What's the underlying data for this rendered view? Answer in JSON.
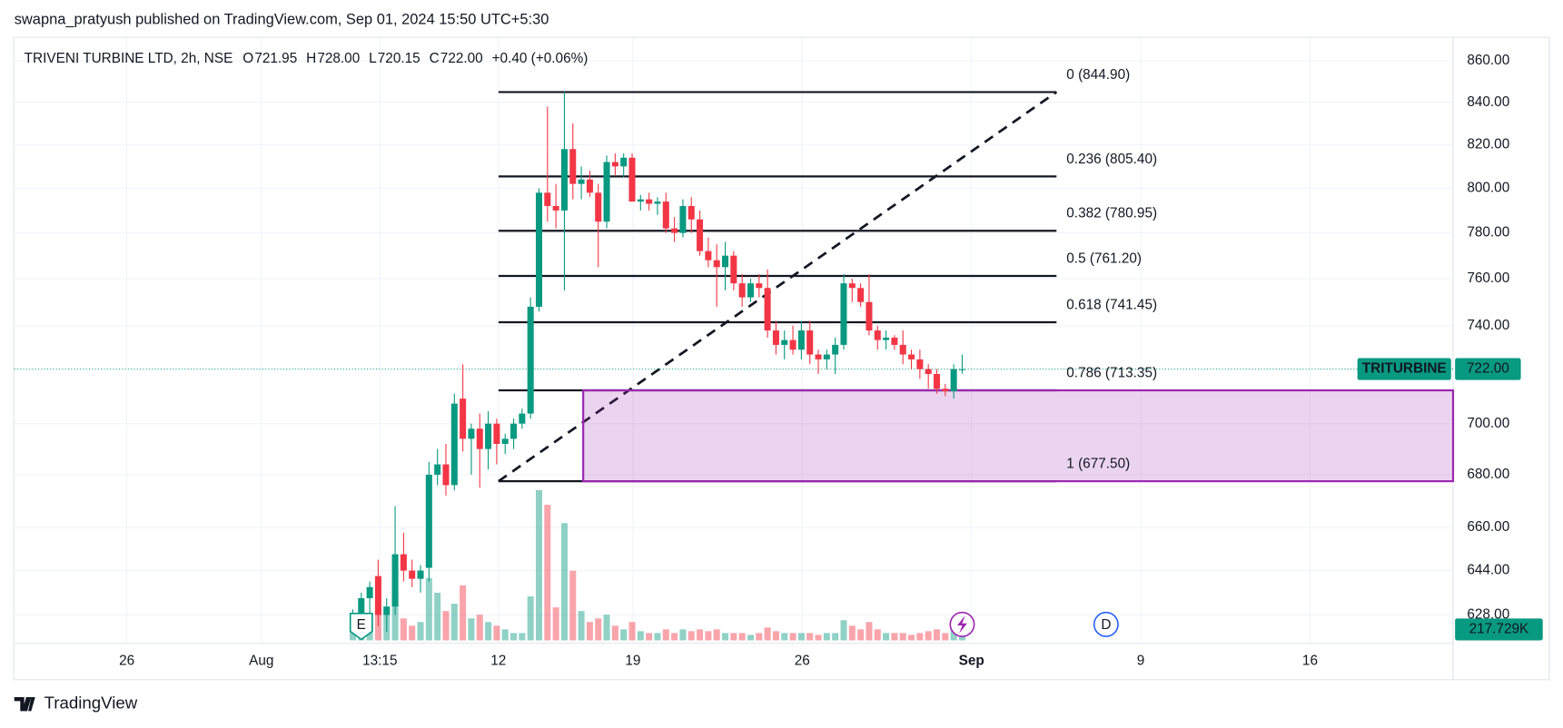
{
  "header": "swapna_pratyush published on TradingView.com, Sep 01, 2024 15:50 UTC+5:30",
  "footer": "TradingView",
  "chart_data": {
    "type": "candlestick",
    "title": "TRIVENI TURBINE LTD, 2h, NSE",
    "ohlc_legend": [
      {
        "key": "O",
        "value": "721.95"
      },
      {
        "key": "H",
        "value": "728.00"
      },
      {
        "key": "L",
        "value": "720.15"
      },
      {
        "key": "C",
        "value": "722.00"
      }
    ],
    "change": "+0.40 (+0.06%)",
    "colors": {
      "up": "#089981",
      "down": "#f23645"
    },
    "log_scale": true,
    "grid": true,
    "ylim": [
      619,
      871.3
    ],
    "yticks": [
      {
        "value": 628,
        "label": "628.00"
      },
      {
        "value": 644,
        "label": "644.00"
      },
      {
        "value": 660,
        "label": "660.00"
      },
      {
        "value": 680,
        "label": "680.00"
      },
      {
        "value": 700,
        "label": "700.00"
      },
      {
        "value": 740,
        "label": "740.00"
      },
      {
        "value": 760,
        "label": "760.00"
      },
      {
        "value": 780,
        "label": "780.00"
      },
      {
        "value": 800,
        "label": "800.00"
      },
      {
        "value": 820,
        "label": "820.00"
      },
      {
        "value": 840,
        "label": "840.00"
      },
      {
        "value": 860,
        "label": "860.00"
      }
    ],
    "xlim": [
      -40,
      130
    ],
    "xticks": [
      {
        "value": -26.7,
        "label": "26"
      },
      {
        "value": -10.8,
        "label": "Aug"
      },
      {
        "value": 3.2,
        "label": "13:15"
      },
      {
        "value": 17.2,
        "label": "12"
      },
      {
        "value": 33.1,
        "label": "19"
      },
      {
        "value": 53.1,
        "label": "26"
      },
      {
        "value": 73.1,
        "label": "Sep"
      },
      {
        "value": 93.1,
        "label": "9"
      },
      {
        "value": 113.1,
        "label": "16"
      }
    ],
    "open": [
      626,
      628,
      634,
      642,
      628,
      631,
      650,
      644,
      641,
      645,
      680,
      684,
      676,
      710,
      694,
      698,
      690,
      700,
      692,
      694,
      700,
      704,
      748,
      798,
      792,
      790,
      818,
      802,
      804,
      798,
      785,
      812,
      810,
      814,
      794,
      795,
      793,
      794,
      782,
      780,
      792,
      786,
      772,
      768,
      765,
      770,
      758,
      752,
      758,
      756,
      738,
      732,
      734,
      730,
      738,
      728,
      726,
      728,
      732,
      758,
      756,
      750,
      738,
      734,
      735,
      732,
      728,
      726,
      722,
      720,
      714,
      713,
      721.95
    ],
    "high": [
      630,
      636,
      640,
      648,
      634,
      668,
      658,
      648,
      646,
      685,
      690,
      692,
      712,
      724,
      700,
      704,
      705,
      702,
      696,
      702,
      706,
      752,
      800,
      838,
      802,
      845,
      830,
      810,
      808,
      802,
      815,
      816,
      816,
      816,
      797,
      798,
      796,
      798,
      787,
      795,
      796,
      790,
      778,
      775,
      776,
      772,
      762,
      760,
      762,
      764,
      742,
      738,
      740,
      742,
      742,
      730,
      730,
      735,
      762,
      760,
      758,
      762,
      740,
      738,
      736,
      738,
      730,
      730,
      724,
      722,
      716,
      724,
      728
    ],
    "low": [
      622,
      625,
      628,
      624,
      622,
      628,
      640,
      638,
      636,
      640,
      676,
      672,
      674,
      689,
      680,
      675,
      682,
      684,
      688,
      690,
      698,
      702,
      746,
      785,
      782,
      755,
      795,
      795,
      796,
      765,
      782,
      806,
      805,
      794,
      790,
      790,
      788,
      780,
      776,
      778,
      780,
      770,
      765,
      748,
      755,
      755,
      748,
      750,
      752,
      735,
      728,
      726,
      728,
      726,
      724,
      720,
      722,
      720,
      730,
      750,
      748,
      736,
      730,
      730,
      730,
      724,
      722,
      718,
      714,
      712,
      711,
      710,
      720.15
    ],
    "close": [
      628,
      634,
      638,
      628,
      631,
      650,
      644,
      641,
      644,
      680,
      684,
      676,
      708,
      694,
      698,
      690,
      700,
      692,
      694,
      700,
      704,
      748,
      798,
      792,
      790,
      818,
      802,
      804,
      798,
      785,
      812,
      810,
      814,
      794,
      795,
      793,
      794,
      782,
      780,
      792,
      786,
      772,
      768,
      765,
      770,
      758,
      752,
      758,
      756,
      738,
      732,
      734,
      730,
      738,
      728,
      726,
      728,
      732,
      758,
      756,
      750,
      738,
      734,
      735,
      732,
      728,
      726,
      722,
      720,
      714,
      713,
      722,
      722
    ],
    "volume": [
      300000,
      600000,
      500000,
      900000,
      700000,
      1300000,
      600000,
      400000,
      500000,
      1700000,
      1300000,
      800000,
      1000000,
      1500000,
      600000,
      700000,
      500000,
      400000,
      300000,
      200000,
      200000,
      1200000,
      4100000,
      3700000,
      900000,
      3200000,
      1900000,
      800000,
      500000,
      600000,
      700000,
      400000,
      300000,
      500000,
      250000,
      200000,
      200000,
      300000,
      200000,
      300000,
      250000,
      300000,
      250000,
      300000,
      200000,
      200000,
      200000,
      150000,
      200000,
      350000,
      250000,
      200000,
      200000,
      200000,
      200000,
      150000,
      200000,
      200000,
      550000,
      400000,
      300000,
      500000,
      300000,
      200000,
      200000,
      200000,
      150000,
      200000,
      250000,
      300000,
      200000,
      300000,
      217729
    ],
    "volume_lim": [
      0,
      5000000
    ],
    "fib_levels": [
      {
        "label": "0 (844.90)",
        "value": 844.9
      },
      {
        "label": "0.236 (805.40)",
        "value": 805.4
      },
      {
        "label": "0.382 (780.95)",
        "value": 780.95
      },
      {
        "label": "0.5 (761.20)",
        "value": 761.2
      },
      {
        "label": "0.618 (741.45)",
        "value": 741.45
      },
      {
        "label": "0.786 (713.35)",
        "value": 713.35
      },
      {
        "label": "1 (677.50)",
        "value": 677.5
      }
    ],
    "last_price": {
      "symbol": "TRITURBINE",
      "label": "722.00",
      "value": 722
    },
    "volume_label": {
      "label": "217.729K",
      "value": 217729
    },
    "events": [
      {
        "label": "E",
        "x": 1
      },
      {
        "label": "D",
        "x": 89
      }
    ]
  }
}
